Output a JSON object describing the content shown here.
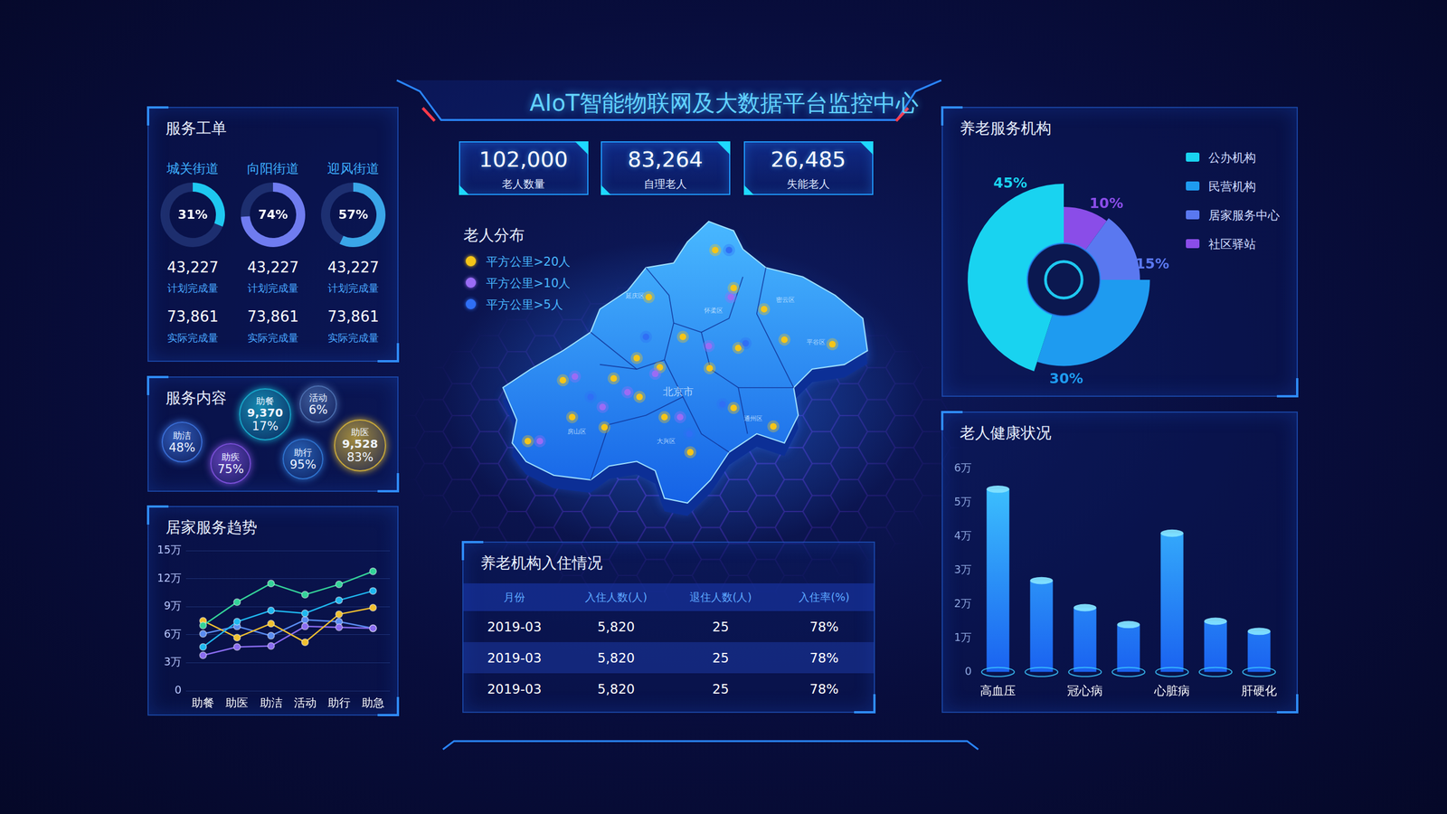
{
  "header": {
    "title": "AIoT智能物联网及大数据平台监控中心"
  },
  "kpis": [
    {
      "value": "102,000",
      "label": "老人数量"
    },
    {
      "value": "83,264",
      "label": "自理老人"
    },
    {
      "value": "26,485",
      "label": "失能老人"
    }
  ],
  "service_orders": {
    "title": "服务工单",
    "streets": [
      {
        "name": "城关街道",
        "rate": 31,
        "rate_label": "31%",
        "planned": "43,227",
        "planned_label": "计划完成量",
        "actual": "73,861",
        "actual_label": "实际完成量",
        "color": "#1ec8f0"
      },
      {
        "name": "向阳街道",
        "rate": 74,
        "rate_label": "74%",
        "planned": "43,227",
        "planned_label": "计划完成量",
        "actual": "73,861",
        "actual_label": "实际完成量",
        "color": "#6f7cf0"
      },
      {
        "name": "迎风街道",
        "rate": 57,
        "rate_label": "57%",
        "planned": "43,227",
        "planned_label": "计划完成量",
        "actual": "73,861",
        "actual_label": "实际完成量",
        "color": "#3aa6e8"
      }
    ]
  },
  "service_content": {
    "title": "服务内容",
    "items": [
      {
        "name": "助洁",
        "percent_label": "48%",
        "color": "#3a6fd8"
      },
      {
        "name": "助餐",
        "count": "9,370",
        "percent_label": "17%",
        "color": "#17a7c9"
      },
      {
        "name": "活动",
        "percent_label": "6%",
        "color": "#4c6fb0"
      },
      {
        "name": "助疾",
        "percent_label": "75%",
        "color": "#7a4fd8"
      },
      {
        "name": "助行",
        "percent_label": "95%",
        "color": "#2f74d0"
      },
      {
        "name": "助医",
        "count": "9,528",
        "percent_label": "83%",
        "color": "#c9a93a"
      }
    ]
  },
  "distribution": {
    "title": "老人分布",
    "legend": [
      {
        "label": "平方公里>20人",
        "color": "#f5c518"
      },
      {
        "label": "平方公里>10人",
        "color": "#9a6cf5"
      },
      {
        "label": "平方公里>5人",
        "color": "#2f6ff5"
      }
    ],
    "labels": [
      "延庆区",
      "怀柔区",
      "密云区",
      "平谷区",
      "北京市",
      "通州区",
      "房山区",
      "大兴区"
    ]
  },
  "table": {
    "title": "养老机构入住情况",
    "columns": [
      "月份",
      "入住人数(人)",
      "退住人数(人)",
      "入住率(%)"
    ],
    "rows": [
      [
        "2019-03",
        "5,820",
        "25",
        "78%"
      ],
      [
        "2019-03",
        "5,820",
        "25",
        "78%"
      ],
      [
        "2019-03",
        "5,820",
        "25",
        "78%"
      ]
    ]
  },
  "chart_data": [
    {
      "type": "line",
      "title": "居家服务趋势",
      "categories": [
        "助餐",
        "助医",
        "助洁",
        "活动",
        "助行",
        "助急"
      ],
      "series": [
        {
          "color": "#34d399",
          "values": [
            7.0,
            9.5,
            11.5,
            10.3,
            11.4,
            12.8
          ]
        },
        {
          "color": "#1fb8f0",
          "values": [
            4.7,
            7.4,
            8.6,
            8.3,
            9.7,
            10.7
          ]
        },
        {
          "color": "#f0c030",
          "values": [
            7.5,
            5.7,
            7.2,
            5.2,
            8.2,
            8.9
          ]
        },
        {
          "color": "#8a6cf0",
          "values": [
            3.8,
            4.7,
            4.8,
            6.9,
            6.8,
            6.7
          ]
        },
        {
          "color": "#5a8cf0",
          "values": [
            6.1,
            6.9,
            5.9,
            7.6,
            7.4,
            6.7
          ]
        }
      ],
      "ylim": [
        0,
        15
      ],
      "yticks": [
        0,
        {
          "value": 3,
          "label": "3万"
        },
        {
          "value": 6,
          "label": "6万"
        },
        {
          "value": 9,
          "label": "9万"
        },
        {
          "value": 12,
          "label": "12万"
        },
        {
          "value": 15,
          "label": "15万"
        }
      ],
      "grid": true,
      "marker": "circle"
    },
    {
      "type": "doughnut",
      "title": "养老服务机构",
      "categories": [
        "公办机构",
        "民营机构",
        "居家服务中心",
        "社区驿站"
      ],
      "values": [
        45,
        30,
        15,
        10
      ],
      "value_labels": [
        "45%",
        "30%",
        "15%",
        "10%"
      ],
      "colors": [
        "#19d3f0",
        "#1e9bf0",
        "#5a78f0",
        "#8a4de8"
      ],
      "data_labels": true,
      "legend": "right"
    },
    {
      "type": "bar",
      "title": "老人健康状况",
      "categories": [
        "高血压",
        null,
        "冠心病",
        null,
        "心脏病",
        null,
        "肝硬化"
      ],
      "values": [
        5.4,
        2.7,
        1.9,
        1.4,
        4.1,
        1.5,
        1.2
      ],
      "color": "#1a62f0",
      "ylim": [
        0,
        6
      ],
      "yticks": [
        0,
        {
          "value": 1,
          "label": "1万"
        },
        {
          "value": 2,
          "label": "2万"
        },
        {
          "value": 3,
          "label": "3万"
        },
        {
          "value": 4,
          "label": "4万"
        },
        {
          "value": 5,
          "label": "5万"
        },
        {
          "value": 6,
          "label": "6万"
        }
      ],
      "grid": false
    }
  ]
}
